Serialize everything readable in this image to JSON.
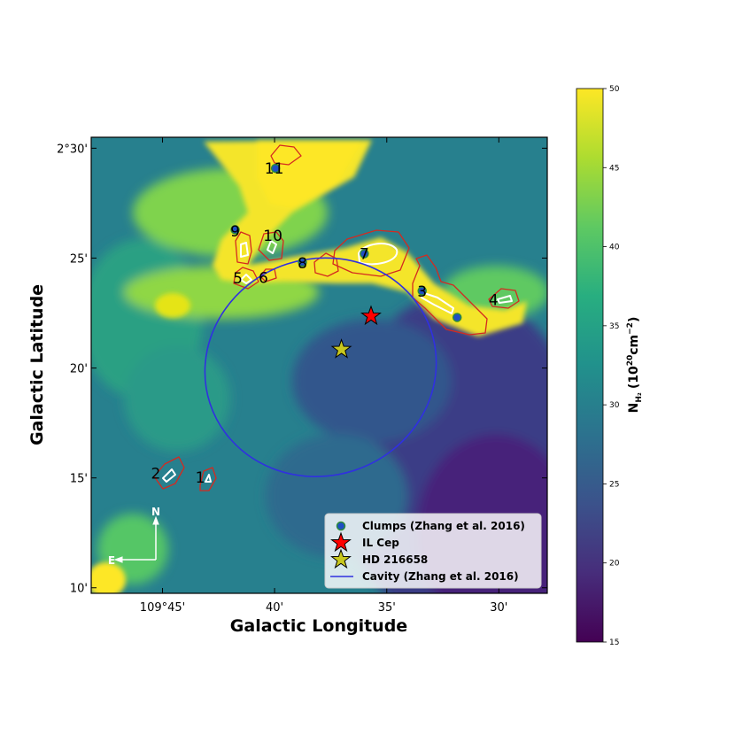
{
  "chart_data": {
    "type": "heatmap",
    "title": "",
    "xlabel": "Galactic Longitude",
    "ylabel": "Galactic Latitude",
    "xlim": [
      109.803,
      109.464
    ],
    "ylim": [
      2.1625,
      2.5083
    ],
    "x_ticks": [
      {
        "value": 109.75,
        "label": "109°45'"
      },
      {
        "value": 109.6667,
        "label": "40'"
      },
      {
        "value": 109.5833,
        "label": "35'"
      },
      {
        "value": 109.5,
        "label": "30'"
      }
    ],
    "y_ticks": [
      {
        "value": 2.5,
        "label": "2°30'"
      },
      {
        "value": 2.4167,
        "label": "25'"
      },
      {
        "value": 2.3333,
        "label": "20'"
      },
      {
        "value": 2.25,
        "label": "15'"
      },
      {
        "value": 2.1667,
        "label": "10'"
      }
    ],
    "colorbar": {
      "label": "N",
      "label_sub": "H₂",
      "label_units": "(10",
      "label_exp": "20",
      "label_units2": "cm",
      "label_exp2": "−2",
      "label_close": ")",
      "range": [
        15,
        50
      ],
      "ticks": [
        "15",
        "20",
        "25",
        "30",
        "35",
        "40",
        "45",
        "50"
      ],
      "colormap": [
        "#440154",
        "#472d7b",
        "#3b528b",
        "#2c728e",
        "#21918c",
        "#28ae80",
        "#5ec962",
        "#addc30",
        "#fde725"
      ]
    },
    "clumps": [
      {
        "id": "1",
        "l": 109.722,
        "b": 2.2505
      },
      {
        "id": "2",
        "l": 109.755,
        "b": 2.2535
      },
      {
        "id": "3",
        "l": 109.557,
        "b": 2.3915
      },
      {
        "id": "4",
        "l": 109.504,
        "b": 2.385
      },
      {
        "id": "5",
        "l": 109.694,
        "b": 2.4015
      },
      {
        "id": "6",
        "l": 109.675,
        "b": 2.402
      },
      {
        "id": "7",
        "l": 109.6,
        "b": 2.42
      },
      {
        "id": "8",
        "l": 109.646,
        "b": 2.413
      },
      {
        "id": "9",
        "l": 109.696,
        "b": 2.437
      },
      {
        "id": "10",
        "l": 109.668,
        "b": 2.4337
      },
      {
        "id": "11",
        "l": 109.667,
        "b": 2.4847
      }
    ],
    "clump_markers": [
      [
        109.696,
        2.4382
      ],
      [
        109.666,
        2.4847
      ],
      [
        109.646,
        2.4136
      ],
      [
        109.6,
        2.42
      ],
      [
        109.557,
        2.3918
      ],
      [
        109.531,
        2.3717
      ]
    ],
    "stars": [
      {
        "name": "IL Cep",
        "l": 109.595,
        "b": 2.3727,
        "color": "#ff0000"
      },
      {
        "name": "HD 216658",
        "l": 109.617,
        "b": 2.3474,
        "color": "#c8c81e"
      }
    ],
    "cavity": {
      "center_l": 109.6325,
      "center_b": 2.3339,
      "semi_l": 0.0865,
      "semi_b": 0.0823,
      "color": "#3030e0"
    },
    "compass": {
      "north": "N",
      "east": "E"
    },
    "legend": {
      "position": "lower-right",
      "entries": [
        "Clumps (Zhang et al. 2016)",
        "IL Cep",
        "HD 216658",
        "Cavity (Zhang et al. 2016)"
      ]
    }
  }
}
